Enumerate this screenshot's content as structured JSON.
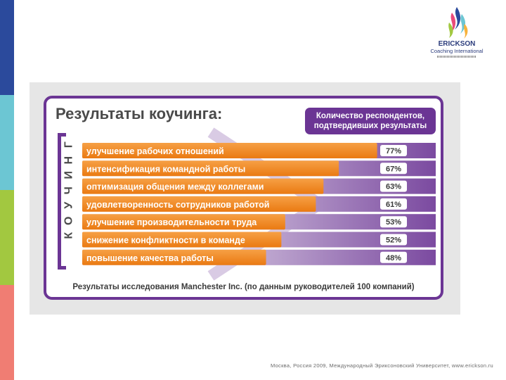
{
  "logo": {
    "name": "ERICKSON",
    "subtitle": "Coaching International",
    "colors": [
      "#2b4a9c",
      "#6cc6d3",
      "#a2c840",
      "#f07d73",
      "#e94b7a"
    ]
  },
  "accent_colors": {
    "purple": "#6b3594",
    "orange": "#f08a21",
    "stripes": [
      "#2b4a9c",
      "#6cc6d3",
      "#a2c840",
      "#f07d73"
    ]
  },
  "chart_data": {
    "type": "bar",
    "orientation": "horizontal",
    "title": "Результаты коучинга:",
    "legend_title": "Количество респондентов, подтвердивших результаты",
    "side_label": "КОУЧИНГ",
    "categories": [
      "улучшение рабочих отношений",
      "интенсификация командной работы",
      "оптимизация общения между коллегами",
      "удовлетворенность сотрудников работой",
      "улучшение производительности труда",
      "снижение конфликтности в команде",
      "повышение качества работы"
    ],
    "values": [
      77,
      67,
      63,
      61,
      53,
      52,
      48
    ],
    "value_labels": [
      "77%",
      "67%",
      "63%",
      "61%",
      "53%",
      "52%",
      "48%"
    ],
    "unit": "%",
    "xlim": [
      0,
      100
    ],
    "grid": false,
    "source": "Результаты исследования Manchester Inc. (по данным руководителей 100 компаний)"
  },
  "footer": "Москва, Россия 2009, Международный Эриксоновский Университет, www.erickson.ru"
}
